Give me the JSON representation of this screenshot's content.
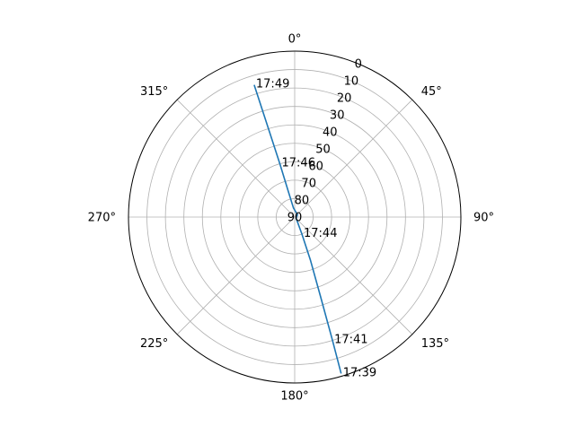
{
  "chart_data": {
    "type": "line",
    "projection": "polar",
    "theta_direction": "clockwise",
    "theta_zero": "top",
    "radial_axis": {
      "reversed": true,
      "rlim": [
        90,
        0
      ],
      "ticks": [
        "0",
        "10",
        "20",
        "30",
        "40",
        "50",
        "60",
        "70",
        "80",
        "90"
      ],
      "tick_values": [
        0,
        10,
        20,
        30,
        40,
        50,
        60,
        70,
        80,
        90
      ]
    },
    "angular_axis": {
      "ticks": [
        "0°",
        "45°",
        "90°",
        "135°",
        "180°",
        "225°",
        "270°",
        "315°"
      ],
      "tick_values": [
        0,
        45,
        90,
        135,
        180,
        225,
        270,
        315
      ]
    },
    "grid": true,
    "series": [
      {
        "color": "#1f77b4",
        "points": [
          {
            "azimuth": 163.5,
            "elevation": 1.5
          },
          {
            "azimuth": 163.0,
            "elevation": 20.0
          },
          {
            "azimuth": 162.0,
            "elevation": 45.0
          },
          {
            "azimuth": 160.0,
            "elevation": 65.0
          },
          {
            "azimuth": 157.0,
            "elevation": 80.0
          },
          {
            "azimuth": 130.0,
            "elevation": 89.0
          },
          {
            "azimuth": 50.0,
            "elevation": 88.0
          },
          {
            "azimuth": 352.0,
            "elevation": 85.0
          },
          {
            "azimuth": 346.0,
            "elevation": 75.0
          },
          {
            "azimuth": 344.5,
            "elevation": 60.0
          },
          {
            "azimuth": 343.5,
            "elevation": 40.0
          },
          {
            "azimuth": 343.0,
            "elevation": 15.0
          }
        ]
      }
    ],
    "annotations": [
      {
        "text": "17:39",
        "azimuth": 163.5,
        "elevation": 1.5
      },
      {
        "text": "17:41",
        "azimuth": 163.0,
        "elevation": 20.0
      },
      {
        "text": "17:44",
        "azimuth": 157.0,
        "elevation": 80.0
      },
      {
        "text": "17:46",
        "azimuth": 344.5,
        "elevation": 60.0
      },
      {
        "text": "17:49",
        "azimuth": 343.0,
        "elevation": 15.0
      }
    ]
  }
}
